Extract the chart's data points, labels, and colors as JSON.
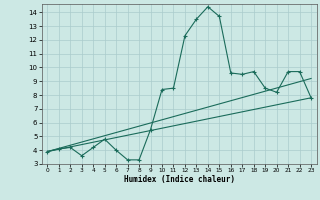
{
  "xlabel": "Humidex (Indice chaleur)",
  "ylabel": "",
  "background_color": "#cce8e4",
  "grid_color": "#aacccc",
  "line_color": "#1a6b5a",
  "xlim": [
    -0.5,
    23.5
  ],
  "ylim": [
    3,
    14.6
  ],
  "yticks": [
    3,
    4,
    5,
    6,
    7,
    8,
    9,
    10,
    11,
    12,
    13,
    14
  ],
  "xticks": [
    0,
    1,
    2,
    3,
    4,
    5,
    6,
    7,
    8,
    9,
    10,
    11,
    12,
    13,
    14,
    15,
    16,
    17,
    18,
    19,
    20,
    21,
    22,
    23
  ],
  "series1_x": [
    0,
    1,
    2,
    3,
    4,
    5,
    6,
    7,
    8,
    9,
    10,
    11,
    12,
    13,
    14,
    15,
    16,
    17,
    18,
    19,
    20,
    21,
    22,
    23
  ],
  "series1_y": [
    3.9,
    4.1,
    4.2,
    3.6,
    4.2,
    4.8,
    4.0,
    3.3,
    3.3,
    5.5,
    8.4,
    8.5,
    12.3,
    13.5,
    14.4,
    13.7,
    9.6,
    9.5,
    9.7,
    8.5,
    8.2,
    9.7,
    9.7,
    7.8
  ],
  "series2_x": [
    0,
    23
  ],
  "series2_y": [
    3.9,
    7.8
  ],
  "series3_x": [
    0,
    23
  ],
  "series3_y": [
    3.9,
    9.2
  ]
}
